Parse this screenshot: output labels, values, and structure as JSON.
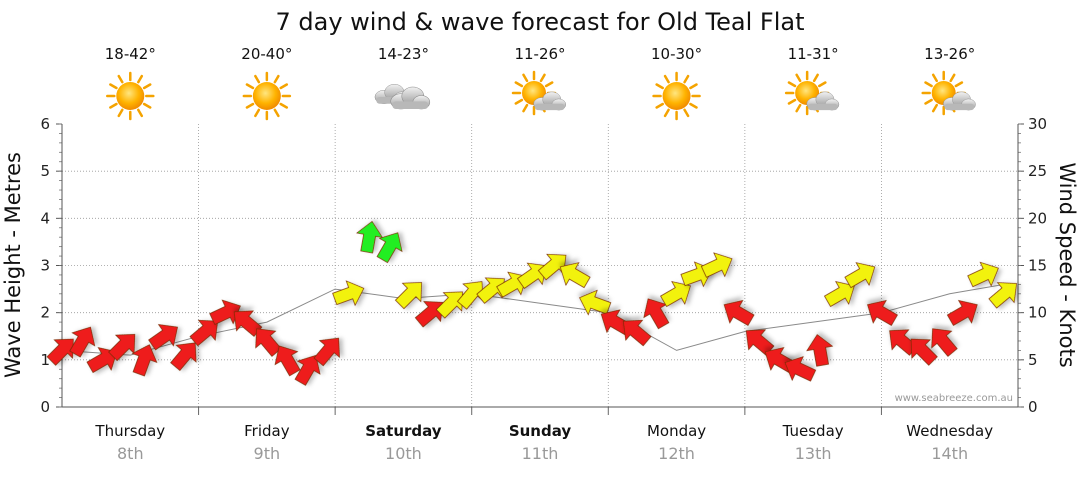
{
  "chart_data": {
    "type": "line",
    "title": "7 day wind & wave forecast for Old Teal Flat",
    "ylabel_left": "Wave Height - Metres",
    "ylabel_right": "Wind Speed - Knots",
    "ylim_left": [
      0,
      6
    ],
    "ylim_right": [
      0,
      30
    ],
    "yticks_left": [
      "0",
      "1",
      "2",
      "3",
      "4",
      "5",
      "6"
    ],
    "yticks_right": [
      "0",
      "5",
      "10",
      "15",
      "20",
      "25",
      "30"
    ],
    "grid": true,
    "watermark": "www.seabreeze.com.au",
    "days": [
      {
        "name": "Thursday",
        "date": "8th",
        "temp": "18-42°",
        "weather": "sunny",
        "bold": false
      },
      {
        "name": "Friday",
        "date": "9th",
        "temp": "20-40°",
        "weather": "sunny",
        "bold": false
      },
      {
        "name": "Saturday",
        "date": "10th",
        "temp": "14-23°",
        "weather": "cloudy",
        "bold": true
      },
      {
        "name": "Sunday",
        "date": "11th",
        "temp": "11-26°",
        "weather": "partly-cloudy",
        "bold": true
      },
      {
        "name": "Monday",
        "date": "12th",
        "temp": "10-30°",
        "weather": "sunny",
        "bold": false
      },
      {
        "name": "Tuesday",
        "date": "13th",
        "temp": "11-31°",
        "weather": "partly-cloudy",
        "bold": false
      },
      {
        "name": "Wednesday",
        "date": "14th",
        "temp": "13-26°",
        "weather": "partly-cloudy",
        "bold": false
      }
    ],
    "legend_colors": {
      "red": "#ee1c1c",
      "yellow": "#f2f20a",
      "green": "#22ee22"
    },
    "series": [
      {
        "name": "Wind Speed (knots)",
        "x": [
          0,
          0.15,
          0.3,
          0.45,
          0.6,
          0.75,
          0.9,
          1.05,
          1.2,
          1.35,
          1.5,
          1.65,
          1.8,
          1.95,
          2.1,
          2.25,
          2.4,
          2.55,
          2.7,
          2.85,
          3.0,
          3.15,
          3.3,
          3.45,
          3.6,
          3.75,
          3.9,
          4.05,
          4.2,
          4.35,
          4.5,
          4.65,
          4.8,
          4.95,
          5.1,
          5.25,
          5.4,
          5.55,
          5.7,
          5.85,
          6.0,
          6.15,
          6.3,
          6.45,
          6.6,
          6.75,
          6.9
        ],
        "values": [
          6,
          7,
          5,
          6.5,
          5,
          7.5,
          5.5,
          8,
          10,
          9,
          7,
          5,
          4,
          6,
          12,
          18,
          17,
          12,
          10,
          11,
          12,
          12.5,
          13,
          14,
          15,
          14,
          11,
          9,
          8,
          10,
          12,
          14,
          15,
          10,
          7,
          5,
          4,
          6,
          12,
          14,
          10,
          7,
          6,
          7,
          10,
          14,
          12
        ],
        "directions": [
          45,
          60,
          30,
          45,
          70,
          35,
          50,
          40,
          25,
          140,
          130,
          120,
          60,
          50,
          20,
          80,
          60,
          45,
          40,
          45,
          50,
          40,
          30,
          35,
          40,
          150,
          160,
          150,
          140,
          120,
          30,
          20,
          25,
          150,
          140,
          150,
          155,
          100,
          30,
          30,
          150,
          140,
          135,
          130,
          30,
          25,
          40
        ]
      },
      {
        "name": "Wave Height (m)",
        "x": [
          0,
          0.5,
          1.0,
          1.5,
          2.0,
          2.5,
          3.0,
          3.5,
          4.0,
          4.5,
          5.0,
          5.5,
          6.0,
          6.5,
          6.9
        ],
        "values": [
          1.2,
          1.1,
          1.5,
          1.8,
          2.5,
          2.3,
          2.4,
          2.2,
          2.0,
          1.2,
          1.6,
          1.8,
          2.0,
          2.4,
          2.6
        ]
      }
    ]
  }
}
